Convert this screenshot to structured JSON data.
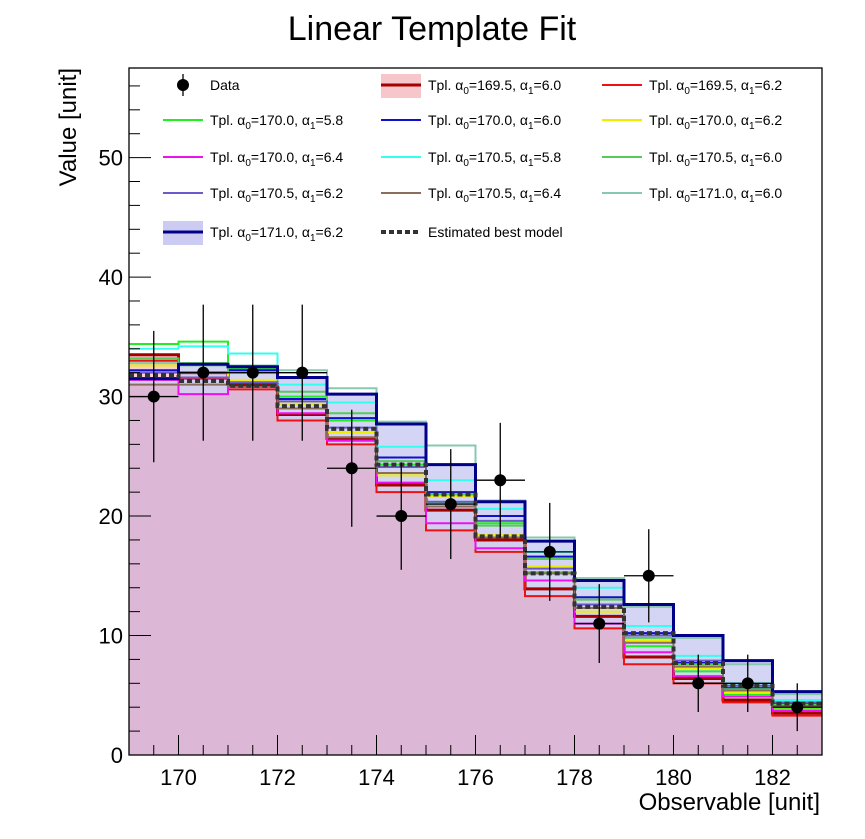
{
  "chart_data": {
    "type": "histogram",
    "title": "Linear Template Fit",
    "xlabel": "Observable [unit]",
    "ylabel": "Value [unit]",
    "xlim": [
      169,
      183
    ],
    "ylim": [
      0,
      57.5
    ],
    "xticks": [
      "170",
      "172",
      "174",
      "176",
      "178",
      "180",
      "182"
    ],
    "yticks": [
      "0",
      "10",
      "20",
      "30",
      "40",
      "50"
    ],
    "bin_edges": [
      169,
      170,
      171,
      172,
      173,
      174,
      175,
      176,
      177,
      178,
      179,
      180,
      181,
      182,
      183
    ],
    "fill_color": "#dcb8d6",
    "data": {
      "name": "Data",
      "x": [
        169.5,
        170.5,
        171.5,
        172.5,
        173.5,
        174.5,
        175.5,
        176.5,
        177.5,
        178.5,
        179.5,
        180.5,
        181.5,
        182.5
      ],
      "y": [
        30,
        32,
        32,
        32,
        24,
        20,
        21,
        23,
        17,
        11,
        15,
        6,
        6,
        4
      ],
      "err": [
        5.5,
        5.7,
        5.7,
        5.7,
        4.9,
        4.5,
        4.6,
        4.8,
        4.1,
        3.3,
        3.9,
        2.4,
        2.4,
        2.0
      ]
    },
    "series": [
      {
        "name": "Tpl. α0=169.5, α1=6.0",
        "label_parts": [
          "Tpl. α",
          "0",
          "=169.5, α",
          "1",
          "=6.0"
        ],
        "color": "#a50000",
        "width": 3,
        "band": "#f7c6cb",
        "values": [
          33.5,
          32.0,
          31.0,
          28.5,
          26.5,
          22.6,
          20.5,
          18.0,
          13.9,
          11.6,
          8.2,
          6.4,
          4.6,
          3.5
        ]
      },
      {
        "name": "Tpl. α0=169.5, α1=6.2",
        "label_parts": [
          "Tpl. α",
          "0",
          "=169.5, α",
          "1",
          "=6.2"
        ],
        "color": "#ee1111",
        "width": 2,
        "values": [
          33.0,
          31.5,
          30.6,
          28.0,
          26.0,
          22.0,
          18.8,
          17.0,
          13.3,
          10.6,
          7.6,
          6.0,
          4.4,
          3.3
        ]
      },
      {
        "name": "Tpl. α0=170.0, α1=5.8",
        "label_parts": [
          "Tpl. α",
          "0",
          "=170.0, α",
          "1",
          "=5.8"
        ],
        "color": "#22ee22",
        "width": 2,
        "values": [
          34.4,
          34.6,
          32.3,
          30.0,
          28.0,
          24.3,
          21.1,
          19.4,
          15.3,
          12.6,
          9.1,
          7.0,
          5.1,
          3.9
        ]
      },
      {
        "name": "Tpl. α0=170.0, α1=6.0",
        "label_parts": [
          "Tpl. α",
          "0",
          "=170.0, α",
          "1",
          "=6.0"
        ],
        "color": "#1010cc",
        "width": 2,
        "values": [
          32.2,
          32.6,
          32.2,
          29.8,
          28.2,
          24.9,
          22.0,
          20.0,
          16.6,
          13.2,
          10.2,
          7.7,
          5.6,
          4.3
        ]
      },
      {
        "name": "Tpl. α0=170.0, α1=6.2",
        "label_parts": [
          "Tpl. α",
          "0",
          "=170.0, α",
          "1",
          "=6.2"
        ],
        "color": "#eeee00",
        "width": 2,
        "values": [
          32.6,
          32.0,
          31.4,
          29.4,
          27.0,
          23.4,
          21.6,
          18.4,
          15.8,
          12.0,
          9.6,
          7.2,
          5.2,
          4.0
        ]
      },
      {
        "name": "Tpl. α0=170.0, α1=6.4",
        "label_parts": [
          "Tpl. α",
          "0",
          "=170.0, α",
          "1",
          "=6.4"
        ],
        "color": "#ee11ee",
        "width": 2,
        "values": [
          31.4,
          30.2,
          30.8,
          28.6,
          26.3,
          22.8,
          19.4,
          17.3,
          14.6,
          11.0,
          8.6,
          6.6,
          4.9,
          3.7
        ]
      },
      {
        "name": "Tpl. α0=170.5, α1=5.8",
        "label_parts": [
          "Tpl. α",
          "0",
          "=170.5, α",
          "1",
          "=5.8"
        ],
        "color": "#33ffee",
        "width": 2,
        "values": [
          34.0,
          34.2,
          33.6,
          31.0,
          29.5,
          25.8,
          23.0,
          20.6,
          17.0,
          14.0,
          10.8,
          8.3,
          6.0,
          4.6
        ]
      },
      {
        "name": "Tpl. α0=170.5, α1=6.0",
        "label_parts": [
          "Tpl. α",
          "0",
          "=170.5, α",
          "1",
          "=6.0"
        ],
        "color": "#55cc55",
        "width": 2,
        "values": [
          33.2,
          32.8,
          32.0,
          30.4,
          28.6,
          24.6,
          21.8,
          19.2,
          16.4,
          13.0,
          9.8,
          7.6,
          5.5,
          4.2
        ]
      },
      {
        "name": "Tpl. α0=170.5, α1=6.2",
        "label_parts": [
          "Tpl. α",
          "0",
          "=170.5, α",
          "1",
          "=6.2"
        ],
        "color": "#6a5acd",
        "width": 2,
        "values": [
          32.0,
          31.6,
          31.2,
          29.6,
          27.4,
          24.1,
          21.2,
          19.6,
          15.6,
          12.6,
          10.0,
          7.9,
          5.8,
          4.4
        ]
      },
      {
        "name": "Tpl. α0=170.5, α1=6.4",
        "label_parts": [
          "Tpl. α",
          "0",
          "=170.5, α",
          "1",
          "=6.4"
        ],
        "color": "#8b6d5c",
        "width": 2,
        "values": [
          31.0,
          31.0,
          30.8,
          29.0,
          26.6,
          23.6,
          20.8,
          18.2,
          15.2,
          12.3,
          9.4,
          7.4,
          5.4,
          4.1
        ]
      },
      {
        "name": "Tpl. α0=171.0, α1=6.0",
        "label_parts": [
          "Tpl. α",
          "0",
          "=171.0, α",
          "1",
          "=6.0"
        ],
        "color": "#88c8b0",
        "width": 2,
        "values": [
          32.8,
          32.6,
          32.6,
          32.2,
          30.7,
          27.9,
          25.9,
          21.3,
          18.2,
          14.8,
          12.4,
          9.8,
          7.6,
          5.1
        ]
      },
      {
        "name": "Tpl. α0=171.0, α1=6.2",
        "label_parts": [
          "Tpl. α",
          "0",
          "=171.0, α",
          "1",
          "=6.2"
        ],
        "color": "#000088",
        "width": 3,
        "band": "#ccccf2",
        "values": [
          31.5,
          32.7,
          32.5,
          31.6,
          30.2,
          27.7,
          24.3,
          21.2,
          17.9,
          14.6,
          12.6,
          10.0,
          7.9,
          5.3
        ]
      }
    ],
    "best_model": {
      "name": "Estimated best model",
      "color": "#333333",
      "values": [
        31.8,
        31.3,
        30.9,
        29.2,
        27.3,
        24.3,
        21.8,
        18.3,
        15.2,
        12.4,
        10.2,
        7.7,
        5.8,
        4.3
      ]
    }
  }
}
